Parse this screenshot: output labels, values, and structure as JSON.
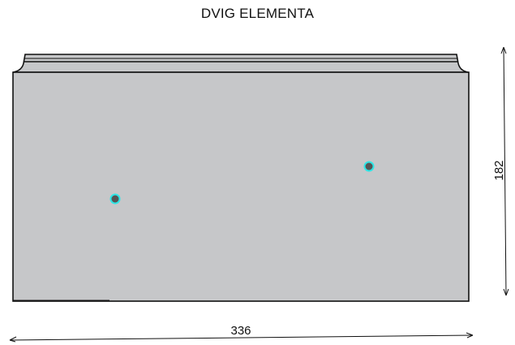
{
  "title": "DVIG ELEMENTA",
  "dimensions": {
    "width_label": "336",
    "height_label": "182"
  },
  "colors": {
    "panel_fill": "#c6c7c9",
    "outline": "#111111",
    "hole_fill": "#555555",
    "hole_ring": "#2ee6e6"
  },
  "lifting_points": [
    {
      "name": "lifting-point-left"
    },
    {
      "name": "lifting-point-right"
    }
  ]
}
